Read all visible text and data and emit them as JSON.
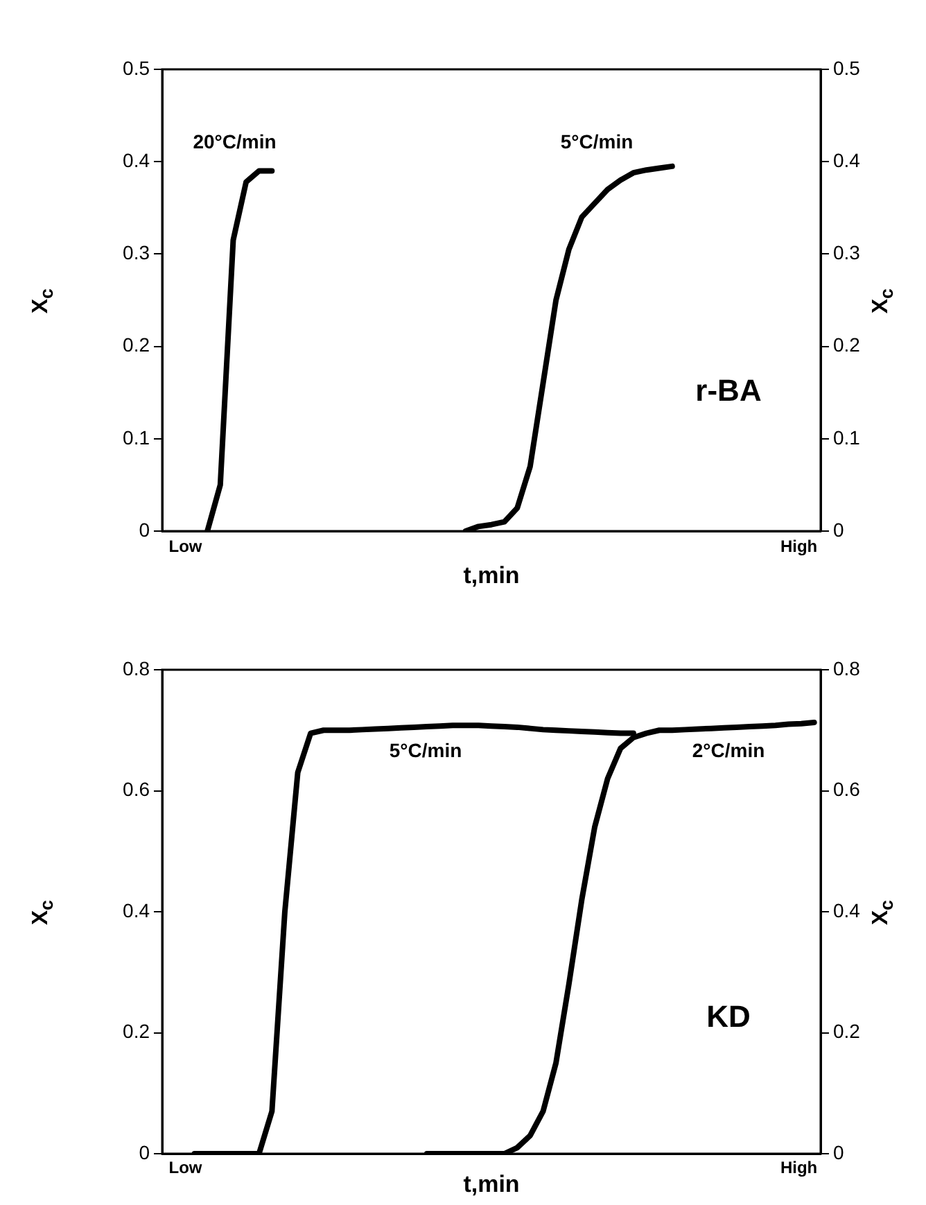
{
  "chart_data": [
    {
      "type": "line",
      "xlabel": "t,min",
      "ylabel": "X$_{c}$",
      "y2label": "X$_{c}$",
      "categories": [
        null,
        null,
        null,
        null,
        null,
        null,
        null,
        null,
        null,
        null,
        null,
        null,
        null,
        null,
        null,
        null,
        null,
        null,
        null,
        null,
        null,
        null,
        null,
        null,
        null,
        null,
        null,
        null,
        null,
        null,
        null,
        null,
        null,
        null,
        null,
        null,
        null,
        null,
        null,
        null,
        null,
        null,
        null,
        null,
        null,
        null,
        null,
        null,
        null,
        null,
        null
      ],
      "ylim": [
        0,
        0.5
      ],
      "yticks": [
        0,
        0.1,
        0.2,
        0.3,
        0.4,
        0.5
      ],
      "y2lim": [
        0,
        0.5
      ],
      "y2ticks": [
        0,
        0.1,
        0.2,
        0.3,
        0.4,
        0.5
      ],
      "grid": false,
      "legend": false,
      "marker": "none",
      "line_style": "solid",
      "series": [
        {
          "color": "#000000",
          "values": [
            null,
            null,
            null,
            0,
            0.05,
            0.315,
            0.378,
            0.39,
            0.39,
            null,
            null,
            null,
            null,
            null,
            null,
            null,
            null,
            null,
            null,
            null,
            null,
            null,
            null,
            null,
            null,
            null,
            null,
            null,
            null,
            null,
            null,
            null,
            null,
            null,
            null,
            null,
            null,
            null,
            null,
            null,
            null,
            null,
            null,
            null,
            null,
            null,
            null,
            null,
            null,
            null,
            null
          ]
        },
        {
          "color": "#000000",
          "values": [
            null,
            null,
            null,
            null,
            null,
            null,
            null,
            null,
            null,
            null,
            null,
            null,
            null,
            null,
            null,
            null,
            null,
            null,
            null,
            null,
            null,
            null,
            null,
            0,
            0.005,
            0.007,
            0.01,
            0.025,
            0.07,
            0.16,
            0.25,
            0.305,
            0.34,
            0.355,
            0.37,
            0.38,
            0.388,
            0.391,
            0.393,
            0.395,
            null,
            null,
            null,
            null,
            null,
            null,
            null,
            null,
            null,
            null,
            null
          ]
        }
      ],
      "annotations": [
        "Low",
        "High",
        "20°C/min",
        "5°C/min",
        "r-BA"
      ]
    },
    {
      "type": "line",
      "xlabel": "t,min",
      "ylabel": "X$_{c}$",
      "y2label": "X$_{c}$",
      "categories": [
        null,
        null,
        null,
        null,
        null,
        null,
        null,
        null,
        null,
        null,
        null,
        null,
        null,
        null,
        null,
        null,
        null,
        null,
        null,
        null,
        null,
        null,
        null,
        null,
        null,
        null,
        null,
        null,
        null,
        null,
        null,
        null,
        null,
        null,
        null,
        null,
        null,
        null,
        null,
        null,
        null,
        null,
        null,
        null,
        null,
        null,
        null,
        null,
        null,
        null,
        null
      ],
      "ylim": [
        0,
        0.8
      ],
      "yticks": [
        0,
        0.2,
        0.4,
        0.6,
        0.8
      ],
      "y2lim": [
        0,
        0.8
      ],
      "y2ticks": [
        0,
        0.2,
        0.4,
        0.6,
        0.8
      ],
      "grid": false,
      "legend": false,
      "marker": "none",
      "line_style": "solid",
      "series": [
        {
          "color": "#000000",
          "values": [
            null,
            null,
            0,
            0,
            0,
            0,
            0,
            0,
            0.07,
            0.4,
            0.63,
            0.695,
            0.7,
            0.7,
            0.7,
            0.701,
            0.702,
            0.703,
            0.704,
            0.705,
            0.706,
            0.707,
            0.708,
            0.708,
            0.708,
            0.707,
            0.706,
            0.705,
            0.703,
            0.701,
            0.7,
            0.699,
            0.698,
            0.697,
            0.696,
            0.695,
            0.695,
            null,
            null,
            null,
            null,
            null,
            null,
            null,
            null,
            null,
            null,
            null,
            null,
            null,
            null
          ]
        },
        {
          "color": "#000000",
          "values": [
            null,
            null,
            null,
            null,
            null,
            null,
            null,
            null,
            null,
            null,
            null,
            null,
            null,
            null,
            null,
            null,
            null,
            null,
            null,
            null,
            0,
            0,
            0,
            0,
            0,
            0,
            0,
            0.01,
            0.03,
            0.07,
            0.15,
            0.28,
            0.42,
            0.54,
            0.62,
            0.67,
            0.688,
            0.695,
            0.7,
            0.7,
            0.701,
            0.702,
            0.703,
            0.704,
            0.705,
            0.706,
            0.707,
            0.708,
            0.71,
            0.711,
            0.713
          ]
        }
      ],
      "annotations": [
        "Low",
        "High",
        "5°C/min",
        "2°C/min",
        "KD"
      ]
    }
  ]
}
